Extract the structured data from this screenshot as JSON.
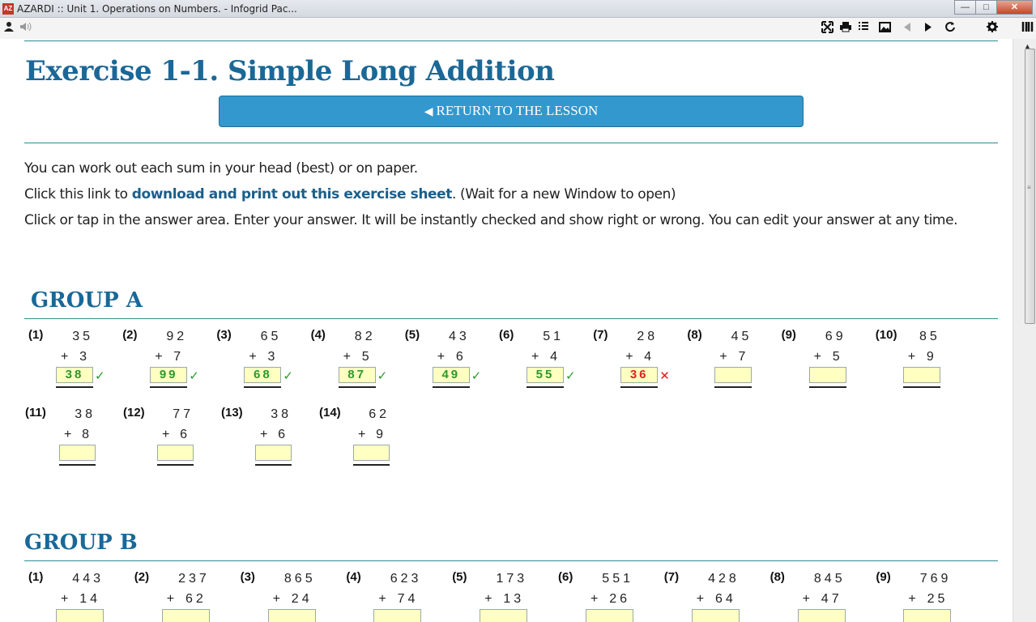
{
  "window": {
    "app_icon": "AZ",
    "title": "AZARDI :: Unit 1. Operations on Numbers. - Infogrid Pac...",
    "buttons": {
      "minimize": "—",
      "maximize": "□",
      "close": "✕"
    }
  },
  "toolbar": {
    "icons": [
      "user-icon",
      "speaker-icon",
      "fullscreen-icon",
      "print-icon",
      "toc-icon",
      "image-icon",
      "prev-icon",
      "next-icon",
      "refresh-icon",
      "settings-icon",
      "library-icon"
    ]
  },
  "page": {
    "title": "Exercise 1-1. Simple Long Addition",
    "return_button": "RETURN TO THE LESSON",
    "para1": " You can work out each sum in your head (best) or on paper.",
    "para2_pre": "Click this link to ",
    "para2_link": "download and print out this exercise sheet",
    "para2_post": ". (Wait for a new Window to open)",
    "para3": "Click or tap in the answer area. Enter your answer. It will be instantly checked and show right or wrong. You can edit your answer at any time."
  },
  "groups": [
    {
      "name": "GROUP A",
      "rows": [
        [
          {
            "num": "(1)",
            "top": "35",
            "add": "3",
            "answer": "38",
            "status": "ok"
          },
          {
            "num": "(2)",
            "top": "92",
            "add": "7",
            "answer": "99",
            "status": "ok"
          },
          {
            "num": "(3)",
            "top": "65",
            "add": "3",
            "answer": "68",
            "status": "ok"
          },
          {
            "num": "(4)",
            "top": "82",
            "add": "5",
            "answer": "87",
            "status": "ok"
          },
          {
            "num": "(5)",
            "top": "43",
            "add": "6",
            "answer": "49",
            "status": "ok"
          },
          {
            "num": "(6)",
            "top": "51",
            "add": "4",
            "answer": "55",
            "status": "ok"
          },
          {
            "num": "(7)",
            "top": "28",
            "add": "4",
            "answer": "36",
            "status": "bad"
          },
          {
            "num": "(8)",
            "top": "45",
            "add": "7",
            "answer": "",
            "status": ""
          },
          {
            "num": "(9)",
            "top": "69",
            "add": "5",
            "answer": "",
            "status": ""
          },
          {
            "num": "(10)",
            "top": "85",
            "add": "9",
            "answer": "",
            "status": ""
          }
        ],
        [
          {
            "num": "(11)",
            "top": "38",
            "add": "8",
            "answer": "",
            "status": ""
          },
          {
            "num": "(12)",
            "top": "77",
            "add": "6",
            "answer": "",
            "status": ""
          },
          {
            "num": "(13)",
            "top": "38",
            "add": "6",
            "answer": "",
            "status": ""
          },
          {
            "num": "(14)",
            "top": "62",
            "add": "9",
            "answer": "",
            "status": ""
          }
        ]
      ]
    },
    {
      "name": "GROUP B",
      "rows": [
        [
          {
            "num": "(1)",
            "top": "443",
            "add": "14",
            "answer": "",
            "status": ""
          },
          {
            "num": "(2)",
            "top": "237",
            "add": "62",
            "answer": "",
            "status": ""
          },
          {
            "num": "(3)",
            "top": "865",
            "add": "24",
            "answer": "",
            "status": ""
          },
          {
            "num": "(4)",
            "top": "623",
            "add": "74",
            "answer": "",
            "status": ""
          },
          {
            "num": "(5)",
            "top": "173",
            "add": "13",
            "answer": "",
            "status": ""
          },
          {
            "num": "(6)",
            "top": "551",
            "add": "26",
            "answer": "",
            "status": ""
          },
          {
            "num": "(7)",
            "top": "428",
            "add": "64",
            "answer": "",
            "status": ""
          },
          {
            "num": "(8)",
            "top": "845",
            "add": "47",
            "answer": "",
            "status": ""
          },
          {
            "num": "(9)",
            "top": "769",
            "add": "25",
            "answer": "",
            "status": ""
          }
        ]
      ]
    }
  ],
  "marks": {
    "ok": "✓",
    "bad": "✕",
    "plus": "+"
  }
}
